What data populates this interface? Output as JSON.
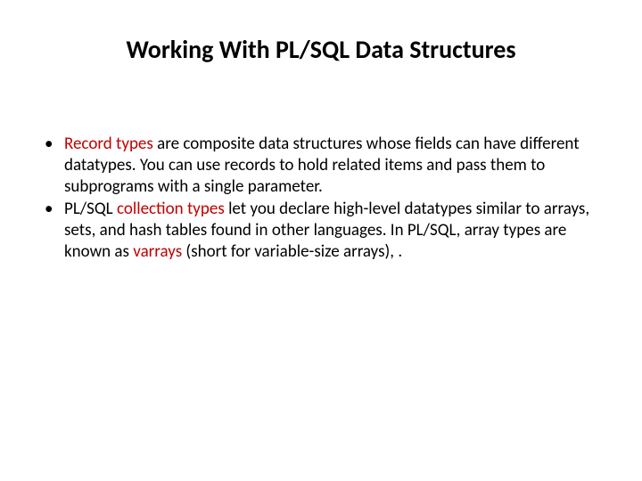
{
  "title": "Working With PL/SQL Data Structures",
  "colors": {
    "text": "#000000",
    "highlight": "#c00000",
    "background": "#ffffff"
  },
  "typography": {
    "title_fontsize": 28,
    "title_weight": 700,
    "body_fontsize": 19,
    "body_line_height": 1.25,
    "font_family": "Calibri"
  },
  "bullets": [
    {
      "hl1": "Record types",
      "t1": " are composite data structures whose fields can have different datatypes. You can use records to hold related items and pass them to subprograms with a single parameter."
    },
    {
      "t0": "PL/SQL ",
      "hl1": "collection types",
      "t1": " let you declare high-level datatypes similar to arrays, sets, and hash tables found in other languages. In PL/SQL, array types are known as ",
      "hl2": "varrays",
      "t2": " (short for variable-size arrays), ."
    }
  ]
}
